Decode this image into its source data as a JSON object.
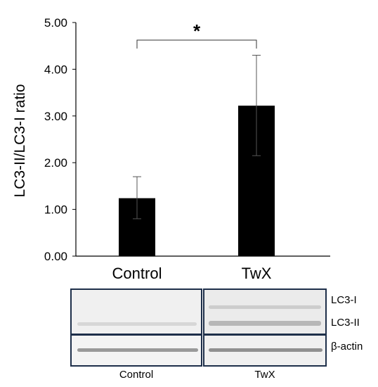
{
  "chart_data": {
    "type": "bar",
    "categories": [
      "Control",
      "TwX"
    ],
    "values": [
      1.24,
      3.22
    ],
    "error_bars": [
      [
        0.8,
        1.7
      ],
      [
        2.15,
        4.3
      ]
    ],
    "ylabel": "LC3-II/LC3-I ratio",
    "xlabel": "",
    "ylim": [
      0,
      5
    ],
    "yticks": [
      "0.00",
      "1.00",
      "2.00",
      "3.00",
      "4.00",
      "5.00"
    ],
    "bar_color": "#000000",
    "grid": false,
    "significance": {
      "between": [
        "Control",
        "TwX"
      ],
      "label": "*"
    }
  },
  "blot": {
    "band_labels": [
      "LC3-I",
      "LC3-II",
      "β-actin"
    ],
    "group_labels": [
      "Control",
      "TwX"
    ],
    "border_color": "#1e2f4a"
  }
}
